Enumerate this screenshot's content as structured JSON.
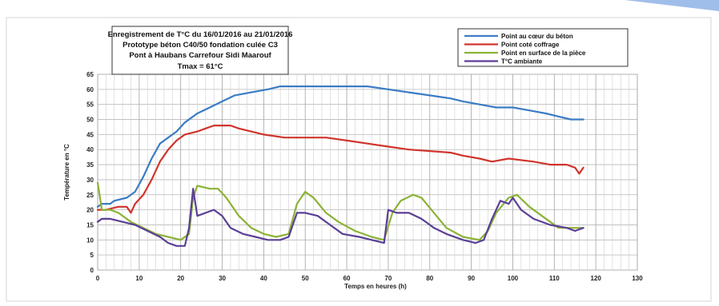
{
  "chart_data": {
    "type": "line",
    "title_lines": [
      "Enregistrement de T°C  du 16/01/2016  au 21/01/2016",
      "Prototype béton C40/50 fondation culée C3",
      "Pont à Haubans Carrefour Sidi  Maarouf",
      "Tmax = 61°C"
    ],
    "xlabel": "Temps en heures (h)",
    "ylabel": "Température en °C",
    "xlim": [
      0,
      130
    ],
    "ylim": [
      0,
      65
    ],
    "x_ticks": [
      0,
      10,
      20,
      30,
      40,
      50,
      60,
      70,
      80,
      90,
      100,
      110,
      120,
      130
    ],
    "y_ticks": [
      0,
      5,
      10,
      15,
      20,
      25,
      30,
      35,
      40,
      45,
      50,
      55,
      60,
      65
    ],
    "grid": true,
    "legend_position": "top-right",
    "series": [
      {
        "name": "Point au cœur du béton",
        "color": "#3b7cc4",
        "points": [
          [
            0,
            21
          ],
          [
            1,
            22
          ],
          [
            3,
            22
          ],
          [
            4,
            23
          ],
          [
            7,
            24
          ],
          [
            9,
            26
          ],
          [
            11,
            31
          ],
          [
            13,
            37
          ],
          [
            15,
            42
          ],
          [
            17,
            44
          ],
          [
            19,
            46
          ],
          [
            21,
            49
          ],
          [
            24,
            52
          ],
          [
            27,
            54
          ],
          [
            30,
            56
          ],
          [
            33,
            58
          ],
          [
            37,
            59
          ],
          [
            41,
            60
          ],
          [
            44,
            61
          ],
          [
            50,
            61
          ],
          [
            55,
            61
          ],
          [
            60,
            61
          ],
          [
            65,
            61
          ],
          [
            70,
            60
          ],
          [
            75,
            59
          ],
          [
            80,
            58
          ],
          [
            85,
            57
          ],
          [
            88,
            56
          ],
          [
            92,
            55
          ],
          [
            96,
            54
          ],
          [
            100,
            54
          ],
          [
            104,
            53
          ],
          [
            108,
            52
          ],
          [
            111,
            51
          ],
          [
            114,
            50
          ],
          [
            117,
            50
          ]
        ]
      },
      {
        "name": "Point coté coffrage",
        "color": "#d0342c",
        "points": [
          [
            0,
            20
          ],
          [
            2,
            20
          ],
          [
            5,
            21
          ],
          [
            7,
            21
          ],
          [
            8,
            19
          ],
          [
            9,
            22
          ],
          [
            11,
            25
          ],
          [
            13,
            30
          ],
          [
            15,
            36
          ],
          [
            17,
            40
          ],
          [
            19,
            43
          ],
          [
            21,
            45
          ],
          [
            24,
            46
          ],
          [
            26,
            47
          ],
          [
            28,
            48
          ],
          [
            32,
            48
          ],
          [
            34,
            47
          ],
          [
            37,
            46
          ],
          [
            40,
            45
          ],
          [
            45,
            44
          ],
          [
            55,
            44
          ],
          [
            60,
            43
          ],
          [
            65,
            42
          ],
          [
            70,
            41
          ],
          [
            75,
            40
          ],
          [
            85,
            39
          ],
          [
            88,
            38
          ],
          [
            92,
            37
          ],
          [
            95,
            36
          ],
          [
            99,
            37
          ],
          [
            105,
            36
          ],
          [
            109,
            35
          ],
          [
            113,
            35
          ],
          [
            115,
            34
          ],
          [
            116,
            32
          ],
          [
            117,
            34
          ]
        ]
      },
      {
        "name": "Point en surface  de la pièce",
        "color": "#8cb236",
        "points": [
          [
            0,
            29
          ],
          [
            1,
            20
          ],
          [
            3,
            20
          ],
          [
            5,
            19
          ],
          [
            8,
            16
          ],
          [
            11,
            14
          ],
          [
            14,
            12
          ],
          [
            17,
            11
          ],
          [
            20,
            10
          ],
          [
            22,
            12
          ],
          [
            23,
            24
          ],
          [
            24,
            28
          ],
          [
            27,
            27
          ],
          [
            29,
            27
          ],
          [
            31,
            24
          ],
          [
            34,
            18
          ],
          [
            37,
            14
          ],
          [
            40,
            12
          ],
          [
            43,
            11
          ],
          [
            46,
            12
          ],
          [
            48,
            22
          ],
          [
            50,
            26
          ],
          [
            52,
            24
          ],
          [
            55,
            19
          ],
          [
            58,
            16
          ],
          [
            62,
            13
          ],
          [
            66,
            11
          ],
          [
            69,
            10
          ],
          [
            71,
            19
          ],
          [
            73,
            23
          ],
          [
            76,
            25
          ],
          [
            78,
            24
          ],
          [
            81,
            19
          ],
          [
            84,
            14
          ],
          [
            88,
            11
          ],
          [
            92,
            10
          ],
          [
            94,
            13
          ],
          [
            96,
            19
          ],
          [
            99,
            24
          ],
          [
            101,
            25
          ],
          [
            104,
            21
          ],
          [
            107,
            18
          ],
          [
            111,
            14
          ],
          [
            113,
            14
          ],
          [
            115,
            14
          ],
          [
            117,
            14
          ]
        ]
      },
      {
        "name": "T°C ambiante",
        "color": "#5b3f96",
        "points": [
          [
            0,
            16
          ],
          [
            1,
            17
          ],
          [
            3,
            17
          ],
          [
            6,
            16
          ],
          [
            9,
            15
          ],
          [
            12,
            13
          ],
          [
            15,
            11
          ],
          [
            17,
            9
          ],
          [
            19,
            8
          ],
          [
            21,
            8
          ],
          [
            22,
            14
          ],
          [
            23,
            27
          ],
          [
            24,
            18
          ],
          [
            26,
            19
          ],
          [
            28,
            20
          ],
          [
            30,
            18
          ],
          [
            32,
            14
          ],
          [
            35,
            12
          ],
          [
            38,
            11
          ],
          [
            41,
            10
          ],
          [
            44,
            10
          ],
          [
            46,
            11
          ],
          [
            48,
            19
          ],
          [
            50,
            19
          ],
          [
            53,
            18
          ],
          [
            56,
            15
          ],
          [
            59,
            12
          ],
          [
            63,
            11
          ],
          [
            66,
            10
          ],
          [
            69,
            9
          ],
          [
            70,
            20
          ],
          [
            72,
            19
          ],
          [
            75,
            19
          ],
          [
            78,
            17
          ],
          [
            81,
            14
          ],
          [
            84,
            12
          ],
          [
            88,
            10
          ],
          [
            91,
            9
          ],
          [
            93,
            10
          ],
          [
            95,
            17
          ],
          [
            97,
            23
          ],
          [
            99,
            22
          ],
          [
            100,
            24
          ],
          [
            102,
            20
          ],
          [
            105,
            17
          ],
          [
            109,
            15
          ],
          [
            113,
            14
          ],
          [
            115,
            13
          ],
          [
            117,
            14
          ]
        ]
      }
    ]
  }
}
